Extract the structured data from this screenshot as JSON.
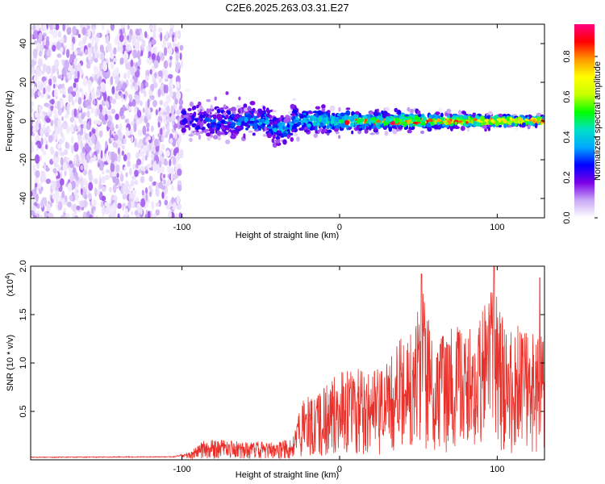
{
  "title": "C2E6.2025.263.03.31.E27",
  "chart_data": [
    {
      "type": "heatmap",
      "name": "spectrogram",
      "xlabel": "Height of straight line (km)",
      "ylabel": "Frequency (Hz)",
      "xlim": [
        -196,
        130
      ],
      "ylim": [
        -50,
        50
      ],
      "xticks": [
        -100,
        0,
        100
      ],
      "xtick_labels": [
        "-100",
        "0",
        "100"
      ],
      "yticks": [
        -40,
        -20,
        0,
        20,
        40
      ],
      "ytick_labels": [
        "-40",
        "-20",
        "0",
        "20",
        "40"
      ],
      "noise_region_end_km": -100,
      "signal_center_hz": 0,
      "colorbar": {
        "label": "Normalized spectral amplitude",
        "range": [
          0.0,
          0.96
        ],
        "ticks": [
          0.0,
          0.2,
          0.4,
          0.6,
          0.8
        ],
        "tick_labels": [
          "0.0",
          "0.2",
          "0.4",
          "0.6",
          "0.8"
        ],
        "colormap": [
          "#ffffff",
          "#c9a8f5",
          "#7b00e8",
          "#0000ff",
          "#00a8ff",
          "#00e0c8",
          "#00ff00",
          "#c8ff00",
          "#ffff00",
          "#ff9900",
          "#ff0000",
          "#ff0080"
        ]
      }
    },
    {
      "type": "line",
      "name": "snr",
      "xlabel": "Height of straight line (km)",
      "ylabel": "SNR (10 * v/v)",
      "y_multiplier_base": "(x10",
      "y_multiplier_exp": "4",
      "y_multiplier_close": ")",
      "xlim": [
        -196,
        130
      ],
      "ylim": [
        0,
        2.0
      ],
      "xticks": [
        -100,
        0,
        100
      ],
      "xtick_labels": [
        "-100",
        "0",
        "100"
      ],
      "yticks": [
        0.5,
        1.0,
        1.5,
        2.0
      ],
      "ytick_labels": [
        "0.5",
        "1.0",
        "1.5",
        "2.0"
      ],
      "color": "#e8312a",
      "envelope": [
        {
          "x": -196,
          "y": 0.03
        },
        {
          "x": -105,
          "y": 0.035
        },
        {
          "x": -95,
          "y": 0.08
        },
        {
          "x": -85,
          "y": 0.22
        },
        {
          "x": -70,
          "y": 0.2
        },
        {
          "x": -55,
          "y": 0.2
        },
        {
          "x": -40,
          "y": 0.18
        },
        {
          "x": -30,
          "y": 0.22
        },
        {
          "x": -23,
          "y": 0.65
        },
        {
          "x": -10,
          "y": 0.75
        },
        {
          "x": 0,
          "y": 0.95
        },
        {
          "x": 10,
          "y": 0.95
        },
        {
          "x": 20,
          "y": 0.9
        },
        {
          "x": 30,
          "y": 1.0
        },
        {
          "x": 38,
          "y": 1.25
        },
        {
          "x": 46,
          "y": 1.35
        },
        {
          "x": 52,
          "y": 1.9
        },
        {
          "x": 60,
          "y": 1.2
        },
        {
          "x": 70,
          "y": 1.4
        },
        {
          "x": 80,
          "y": 1.35
        },
        {
          "x": 90,
          "y": 1.5
        },
        {
          "x": 98,
          "y": 1.95
        },
        {
          "x": 106,
          "y": 1.3
        },
        {
          "x": 116,
          "y": 1.45
        },
        {
          "x": 124,
          "y": 1.3
        },
        {
          "x": 127,
          "y": 1.85
        },
        {
          "x": 130,
          "y": 1.1
        }
      ],
      "peaks": [
        {
          "x": 52,
          "y": 1.92
        },
        {
          "x": 98,
          "y": 2.0
        },
        {
          "x": 127,
          "y": 1.88
        }
      ]
    }
  ]
}
